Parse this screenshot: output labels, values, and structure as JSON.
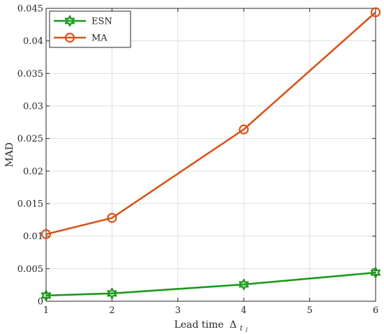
{
  "chart_data": {
    "type": "line",
    "x": [
      1,
      2,
      4,
      6
    ],
    "series": [
      {
        "name": "ESN",
        "values": [
          0.00088,
          0.0012,
          0.00258,
          0.0044
        ],
        "color": "#1a9a1a",
        "marker": "hexagram"
      },
      {
        "name": "MA",
        "values": [
          0.0103,
          0.0128,
          0.0264,
          0.0444
        ],
        "color": "#d95319",
        "marker": "circle"
      }
    ],
    "xlabel_text": "Lead time",
    "xlabel_symbol": "Δ",
    "xlabel_subscript": "t",
    "xlabel_subsubscript": "l",
    "ylabel": "MAD",
    "xlim": [
      1,
      6
    ],
    "ylim": [
      0,
      0.045
    ],
    "xticks": [
      1,
      2,
      3,
      4,
      5,
      6
    ],
    "xtick_labels": [
      "1",
      "2",
      "3",
      "4",
      "5",
      "6"
    ],
    "yticks": [
      0,
      0.005,
      0.01,
      0.015,
      0.02,
      0.025,
      0.03,
      0.035,
      0.04,
      0.045
    ],
    "ytick_labels": [
      "0",
      "0.005",
      "0.01",
      "0.015",
      "0.02",
      "0.025",
      "0.03",
      "0.035",
      "0.04",
      "0.045"
    ],
    "grid": true,
    "legend_position": "top-left"
  }
}
